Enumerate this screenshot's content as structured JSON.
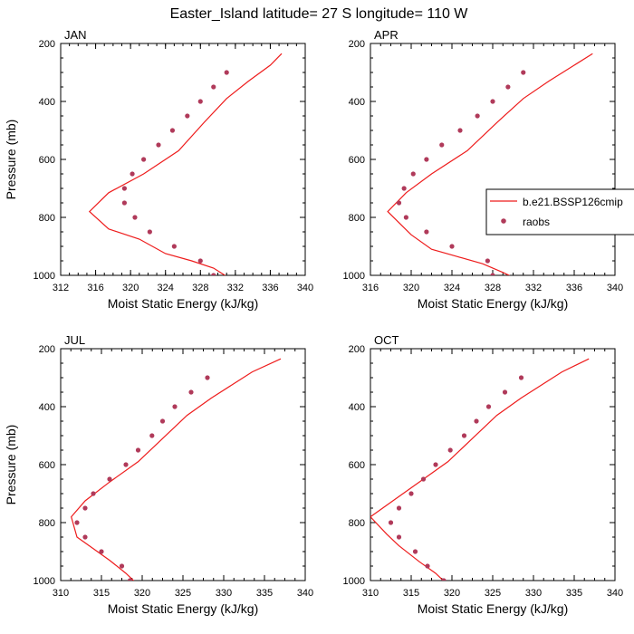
{
  "figure": {
    "title": "Easter_Island  latitude= 27 S longitude= 110 W",
    "colors": {
      "model": "#ee1c1c",
      "obs": "#b03a5a",
      "axis": "#000000"
    }
  },
  "legend": {
    "items": [
      {
        "label": "b.e21.BSSP126cmip",
        "kind": "line"
      },
      {
        "label": "raobs",
        "kind": "marker"
      }
    ]
  },
  "chart_data": [
    {
      "type": "line",
      "panel_label": "JAN",
      "xlabel": "Moist Static Energy (kJ/kg)",
      "ylabel": "Pressure (mb)",
      "xlim": [
        312,
        340
      ],
      "ylim": [
        1000,
        200
      ],
      "xticks": [
        312,
        316,
        320,
        324,
        328,
        332,
        336,
        340
      ],
      "yticks": [
        200,
        400,
        600,
        800,
        1000
      ],
      "series": [
        {
          "name": "b.e21.BSSP126cmip",
          "kind": "line",
          "x": [
            331.8,
            330.8,
            329.5,
            327.0,
            324.0,
            321.0,
            317.5,
            315.3,
            317.5,
            321.5,
            325.5,
            328.5,
            331.0,
            333.5,
            336.0,
            337.3
          ],
          "y": [
            1025,
            1000,
            975,
            950,
            925,
            875,
            840,
            780,
            715,
            650,
            570,
            470,
            390,
            330,
            275,
            235
          ]
        },
        {
          "name": "raobs",
          "kind": "marker",
          "x": [
            329.5,
            328.0,
            325.0,
            322.2,
            320.5,
            319.3,
            319.3,
            320.2,
            321.5,
            323.2,
            324.8,
            326.5,
            328.0,
            329.5,
            331.0
          ],
          "y": [
            1000,
            950,
            900,
            850,
            800,
            750,
            700,
            650,
            600,
            550,
            500,
            450,
            400,
            350,
            300
          ]
        }
      ]
    },
    {
      "type": "line",
      "panel_label": "APR",
      "xlabel": "Moist Static Energy (kJ/kg)",
      "ylabel": "",
      "xlim": [
        316,
        340
      ],
      "ylim": [
        1000,
        200
      ],
      "xticks": [
        316,
        320,
        324,
        328,
        332,
        336,
        340
      ],
      "yticks": [
        200,
        400,
        600,
        800,
        1000
      ],
      "series": [
        {
          "name": "b.e21.BSSP126cmip",
          "kind": "line",
          "x": [
            330.5,
            329.0,
            327.0,
            324.5,
            322.0,
            320.0,
            317.7,
            319.5,
            322.0,
            325.5,
            328.5,
            331.0,
            333.5,
            336.0,
            337.8
          ],
          "y": [
            1015,
            990,
            960,
            935,
            910,
            860,
            780,
            715,
            650,
            570,
            470,
            390,
            330,
            275,
            235
          ]
        },
        {
          "name": "raobs",
          "kind": "marker",
          "x": [
            328.0,
            327.5,
            324.0,
            321.5,
            319.5,
            318.8,
            319.3,
            320.2,
            321.5,
            323.0,
            324.8,
            326.5,
            328.0,
            329.5,
            331.0
          ],
          "y": [
            1000,
            950,
            900,
            850,
            800,
            750,
            700,
            650,
            600,
            550,
            500,
            450,
            400,
            350,
            300
          ]
        }
      ]
    },
    {
      "type": "line",
      "panel_label": "JUL",
      "xlabel": "Moist Static Energy (kJ/kg)",
      "ylabel": "Pressure (mb)",
      "xlim": [
        310,
        340
      ],
      "ylim": [
        1000,
        200
      ],
      "xticks": [
        310,
        315,
        320,
        325,
        330,
        335,
        340
      ],
      "yticks": [
        200,
        400,
        600,
        800,
        1000
      ],
      "series": [
        {
          "name": "b.e21.BSSP126cmip",
          "kind": "line",
          "x": [
            319.5,
            318.0,
            316.0,
            314.0,
            312.0,
            311.3,
            313.0,
            316.0,
            319.5,
            322.5,
            325.5,
            328.5,
            331.0,
            333.5,
            337.0
          ],
          "y": [
            1015,
            975,
            930,
            890,
            850,
            780,
            725,
            660,
            590,
            510,
            430,
            370,
            325,
            280,
            235
          ]
        },
        {
          "name": "raobs",
          "kind": "marker",
          "x": [
            318.5,
            317.5,
            315.0,
            313.0,
            312.0,
            313.0,
            314.0,
            316.0,
            318.0,
            319.5,
            321.2,
            322.5,
            324.0,
            326.0,
            328.0
          ],
          "y": [
            1000,
            950,
            900,
            850,
            800,
            750,
            700,
            650,
            600,
            550,
            500,
            450,
            400,
            350,
            300
          ]
        }
      ]
    },
    {
      "type": "line",
      "panel_label": "OCT",
      "xlabel": "Moist Static Energy (kJ/kg)",
      "ylabel": "",
      "xlim": [
        310,
        340
      ],
      "ylim": [
        1000,
        200
      ],
      "xticks": [
        310,
        315,
        320,
        325,
        330,
        335,
        340
      ],
      "yticks": [
        200,
        400,
        600,
        800,
        1000
      ],
      "series": [
        {
          "name": "b.e21.BSSP126cmip",
          "kind": "line",
          "x": [
            319.5,
            318.0,
            316.0,
            313.5,
            312.0,
            310.0,
            313.0,
            316.5,
            319.5,
            322.5,
            325.5,
            328.5,
            331.0,
            333.5,
            336.8
          ],
          "y": [
            1015,
            975,
            935,
            880,
            840,
            780,
            720,
            650,
            590,
            510,
            430,
            370,
            325,
            280,
            235
          ]
        },
        {
          "name": "raobs",
          "kind": "marker",
          "x": [
            319.0,
            317.0,
            315.5,
            313.5,
            312.5,
            313.5,
            315.0,
            316.5,
            318.0,
            319.8,
            321.5,
            323.0,
            324.5,
            326.5,
            328.5
          ],
          "y": [
            1000,
            950,
            900,
            850,
            800,
            750,
            700,
            650,
            600,
            550,
            500,
            450,
            400,
            350,
            300
          ]
        }
      ]
    }
  ]
}
